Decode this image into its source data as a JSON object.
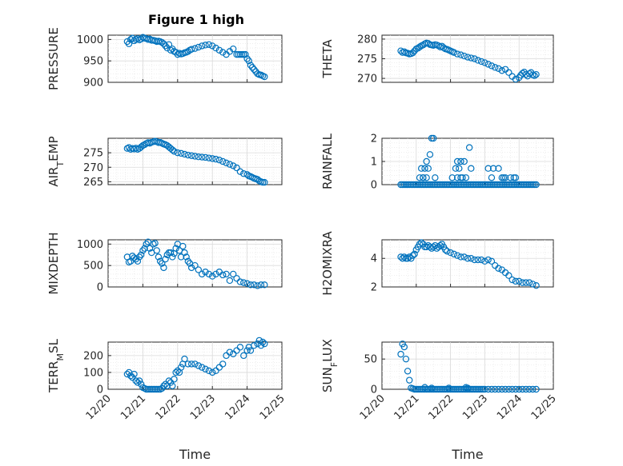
{
  "chart_data": [
    {
      "type": "scatter",
      "title": "Figure 1 high",
      "ylabel": "PRESSURE",
      "xlabel": "",
      "xlim": [
        20,
        25
      ],
      "ylim": [
        900,
        1010
      ],
      "yticks": [
        "900",
        "950",
        "1000"
      ],
      "ytick_values": [
        900,
        950,
        1000
      ],
      "x": [
        20.55,
        20.6,
        20.65,
        20.7,
        20.75,
        20.8,
        20.85,
        20.9,
        20.95,
        21.0,
        21.05,
        21.1,
        21.15,
        21.2,
        21.25,
        21.3,
        21.35,
        21.4,
        21.45,
        21.5,
        21.55,
        21.6,
        21.65,
        21.7,
        21.75,
        21.8,
        21.85,
        21.9,
        21.95,
        22.0,
        22.05,
        22.1,
        22.15,
        22.2,
        22.25,
        22.3,
        22.35,
        22.4,
        22.5,
        22.6,
        22.7,
        22.8,
        22.9,
        23.0,
        23.1,
        23.2,
        23.3,
        23.4,
        23.5,
        23.6,
        23.7,
        23.75,
        23.8,
        23.85,
        23.9,
        23.95,
        24.0,
        24.05,
        24.1,
        24.15,
        24.2,
        24.25,
        24.3,
        24.35,
        24.4,
        24.45,
        24.5
      ],
      "y": [
        995,
        990,
        1000,
        1003,
        997,
        1000,
        1002,
        999,
        1001,
        1005,
        1003,
        1002,
        1000,
        1001,
        998,
        998,
        997,
        995,
        996,
        995,
        993,
        990,
        985,
        980,
        988,
        975,
        978,
        972,
        970,
        965,
        968,
        966,
        967,
        969,
        970,
        972,
        975,
        977,
        979,
        982,
        985,
        987,
        988,
        985,
        980,
        975,
        970,
        965,
        972,
        978,
        965,
        965,
        965,
        965,
        965,
        965,
        955,
        950,
        940,
        935,
        930,
        925,
        920,
        918,
        917,
        915,
        913
      ]
    },
    {
      "type": "scatter",
      "ylabel": "THETA",
      "xlabel": "",
      "xlim": [
        20,
        25
      ],
      "ylim": [
        269,
        281
      ],
      "yticks": [
        "270",
        "275",
        "280"
      ],
      "ytick_values": [
        270,
        275,
        280
      ],
      "x": [
        20.55,
        20.6,
        20.65,
        20.7,
        20.75,
        20.8,
        20.85,
        20.9,
        20.95,
        21.0,
        21.05,
        21.1,
        21.15,
        21.2,
        21.25,
        21.3,
        21.35,
        21.4,
        21.45,
        21.5,
        21.55,
        21.6,
        21.65,
        21.7,
        21.75,
        21.8,
        21.85,
        21.9,
        21.95,
        22.0,
        22.05,
        22.1,
        22.2,
        22.3,
        22.4,
        22.5,
        22.6,
        22.7,
        22.8,
        22.9,
        23.0,
        23.1,
        23.2,
        23.3,
        23.4,
        23.5,
        23.6,
        23.7,
        23.8,
        23.9,
        24.0,
        24.05,
        24.1,
        24.15,
        24.2,
        24.25,
        24.3,
        24.35,
        24.4,
        24.45,
        24.5
      ],
      "y": [
        277,
        276.6,
        276.8,
        276.5,
        276.4,
        276.2,
        276.3,
        276.5,
        277,
        277.5,
        277.7,
        278,
        278.3,
        278.5,
        278.8,
        279,
        278.9,
        278.6,
        278.5,
        278.4,
        278.6,
        278.5,
        278.3,
        278,
        278.2,
        277.8,
        277.5,
        277.4,
        277.2,
        277,
        276.8,
        276.6,
        276.2,
        276,
        275.7,
        275.4,
        275.2,
        275,
        274.6,
        274.3,
        274,
        273.6,
        273.2,
        272.8,
        272.5,
        272,
        272.3,
        271.5,
        270.5,
        269.8,
        270.2,
        270.8,
        271.3,
        271.6,
        271,
        270.6,
        271.2,
        271.5,
        270.9,
        270.7,
        271
      ]
    },
    {
      "type": "scatter",
      "ylabel": "AIR_TEMP",
      "xlabel": "",
      "xlim": [
        20,
        25
      ],
      "ylim": [
        264,
        280
      ],
      "yticks": [
        "265",
        "270",
        "275"
      ],
      "ytick_values": [
        265,
        270,
        275
      ],
      "x": [
        20.55,
        20.6,
        20.65,
        20.7,
        20.75,
        20.8,
        20.85,
        20.9,
        20.95,
        21.0,
        21.05,
        21.1,
        21.15,
        21.2,
        21.25,
        21.3,
        21.35,
        21.4,
        21.45,
        21.5,
        21.55,
        21.6,
        21.65,
        21.7,
        21.75,
        21.8,
        21.85,
        21.9,
        22.0,
        22.1,
        22.2,
        22.3,
        22.4,
        22.5,
        22.6,
        22.7,
        22.8,
        22.9,
        23.0,
        23.1,
        23.2,
        23.3,
        23.4,
        23.5,
        23.6,
        23.7,
        23.8,
        23.9,
        24.0,
        24.05,
        24.1,
        24.15,
        24.2,
        24.25,
        24.3,
        24.35,
        24.4,
        24.45,
        24.5
      ],
      "y": [
        276.5,
        276.8,
        276.2,
        276.5,
        276.3,
        276.6,
        276.2,
        276.5,
        277,
        277.5,
        277.8,
        278.2,
        278.5,
        278.3,
        278.6,
        278.8,
        279,
        278.8,
        278.5,
        278.6,
        278.3,
        278,
        277.8,
        277.5,
        277,
        276.5,
        276,
        275.5,
        275,
        274.8,
        274.5,
        274.2,
        274,
        273.8,
        273.6,
        273.5,
        273.4,
        273.2,
        273,
        272.8,
        272.5,
        272,
        271.5,
        271,
        270.5,
        269.8,
        268.5,
        267.8,
        267.5,
        267,
        266.8,
        266.5,
        266.2,
        266,
        265.8,
        265.3,
        265,
        264.8,
        264.8
      ]
    },
    {
      "type": "scatter",
      "ylabel": "RAINFALL",
      "xlabel": "",
      "xlim": [
        20,
        25
      ],
      "ylim": [
        0,
        2
      ],
      "yticks": [
        "0",
        "1",
        "2"
      ],
      "ytick_values": [
        0,
        1,
        2
      ],
      "x": [
        20.55,
        20.6,
        20.65,
        20.7,
        20.75,
        20.8,
        20.85,
        20.9,
        20.95,
        21.0,
        21.05,
        21.1,
        21.15,
        21.2,
        21.25,
        21.3,
        21.35,
        21.4,
        21.45,
        21.5,
        21.55,
        21.6,
        21.65,
        21.7,
        21.75,
        21.8,
        21.85,
        21.9,
        21.95,
        22.0,
        22.05,
        22.1,
        22.15,
        22.2,
        22.25,
        22.3,
        22.35,
        22.4,
        22.45,
        22.5,
        22.55,
        22.6,
        22.65,
        22.7,
        22.75,
        22.8,
        22.85,
        22.9,
        22.95,
        23.0,
        23.05,
        23.1,
        23.15,
        23.2,
        23.25,
        23.3,
        23.35,
        23.4,
        23.45,
        23.5,
        23.55,
        23.6,
        23.65,
        23.7,
        23.75,
        23.8,
        23.85,
        23.9,
        23.95,
        24.0,
        24.05,
        24.1,
        24.15,
        24.2,
        24.25,
        24.3,
        24.35,
        24.4,
        24.45,
        24.5,
        21.1,
        21.15,
        21.2,
        21.25,
        21.3,
        21.35,
        21.45,
        21.5,
        21.55,
        22.05,
        22.15,
        22.2,
        22.25,
        22.3,
        22.4,
        22.45,
        22.55,
        22.6,
        23.1,
        23.2,
        23.55,
        23.9,
        22.3,
        22.35,
        22.2,
        21.2,
        21.4,
        21.3,
        23.25,
        23.4,
        23.5,
        23.6,
        23.75,
        23.85
      ],
      "y": [
        0,
        0,
        0,
        0,
        0,
        0,
        0,
        0,
        0,
        0,
        0,
        0,
        0,
        0,
        0,
        0,
        0,
        0,
        0,
        0,
        0,
        0,
        0,
        0,
        0,
        0,
        0,
        0,
        0,
        0,
        0,
        0,
        0,
        0,
        0,
        0,
        0,
        0,
        0,
        0,
        0,
        0,
        0,
        0,
        0,
        0,
        0,
        0,
        0,
        0,
        0,
        0,
        0,
        0,
        0,
        0,
        0,
        0,
        0,
        0,
        0,
        0,
        0,
        0,
        0,
        0,
        0,
        0,
        0,
        0,
        0,
        0,
        0,
        0,
        0,
        0,
        0,
        0,
        0,
        0,
        0.3,
        0.7,
        0.3,
        0.7,
        1,
        0.7,
        2,
        2,
        0.3,
        0.3,
        0.7,
        1,
        0.7,
        1,
        1,
        0.3,
        1.6,
        0.7,
        0.7,
        0.3,
        0.3,
        0.3,
        0.3,
        0.3,
        0.3,
        0.3,
        1.3,
        0.3,
        0.7,
        0.7,
        0.3,
        0.3,
        0.3,
        0.3
      ]
    },
    {
      "type": "scatter",
      "ylabel": "MIXDEPTH",
      "xlabel": "",
      "xlim": [
        20,
        25
      ],
      "ylim": [
        0,
        1100
      ],
      "yticks": [
        "0",
        "500",
        "1000"
      ],
      "ytick_values": [
        0,
        500,
        1000
      ],
      "x": [
        20.55,
        20.6,
        20.65,
        20.7,
        20.75,
        20.8,
        20.85,
        20.9,
        20.95,
        21.0,
        21.05,
        21.1,
        21.15,
        21.2,
        21.25,
        21.3,
        21.35,
        21.4,
        21.45,
        21.5,
        21.55,
        21.6,
        21.65,
        21.7,
        21.75,
        21.8,
        21.85,
        21.9,
        21.95,
        22.0,
        22.05,
        22.1,
        22.15,
        22.2,
        22.25,
        22.3,
        22.35,
        22.4,
        22.5,
        22.6,
        22.7,
        22.8,
        22.9,
        23.0,
        23.1,
        23.2,
        23.3,
        23.4,
        23.5,
        23.6,
        23.7,
        23.8,
        23.9,
        24.0,
        24.1,
        24.2,
        24.3,
        24.4,
        24.5
      ],
      "y": [
        700,
        580,
        600,
        720,
        680,
        650,
        600,
        700,
        750,
        850,
        900,
        1000,
        1050,
        900,
        800,
        1000,
        1020,
        850,
        700,
        600,
        550,
        450,
        650,
        750,
        800,
        800,
        700,
        780,
        900,
        1000,
        850,
        700,
        950,
        800,
        700,
        600,
        550,
        450,
        500,
        400,
        300,
        350,
        300,
        250,
        300,
        350,
        280,
        300,
        150,
        300,
        200,
        120,
        100,
        80,
        50,
        50,
        30,
        50,
        50
      ]
    },
    {
      "type": "scatter",
      "ylabel": "H2OMIXRA",
      "xlabel": "",
      "xlim": [
        20,
        25
      ],
      "ylim": [
        2,
        5.3
      ],
      "yticks": [
        "2",
        "4"
      ],
      "ytick_values": [
        2,
        4
      ],
      "x": [
        20.55,
        20.6,
        20.65,
        20.7,
        20.75,
        20.8,
        20.85,
        20.9,
        20.95,
        21.0,
        21.05,
        21.1,
        21.15,
        21.2,
        21.25,
        21.3,
        21.35,
        21.4,
        21.45,
        21.5,
        21.55,
        21.6,
        21.65,
        21.7,
        21.75,
        21.8,
        21.85,
        21.9,
        22.0,
        22.1,
        22.2,
        22.3,
        22.4,
        22.5,
        22.6,
        22.7,
        22.8,
        22.9,
        23.0,
        23.1,
        23.2,
        23.3,
        23.4,
        23.5,
        23.6,
        23.7,
        23.8,
        23.9,
        24.0,
        24.1,
        24.2,
        24.3,
        24.4,
        24.5
      ],
      "y": [
        4.1,
        4.0,
        4.1,
        4.0,
        4.0,
        4.1,
        4.0,
        4.2,
        4.3,
        4.6,
        4.8,
        5.0,
        5.1,
        5.0,
        4.8,
        4.8,
        4.9,
        4.8,
        4.7,
        4.8,
        4.9,
        4.7,
        4.8,
        4.9,
        5.0,
        4.8,
        4.6,
        4.5,
        4.4,
        4.3,
        4.2,
        4.1,
        4.1,
        4.0,
        4.0,
        3.9,
        3.9,
        3.9,
        3.8,
        3.9,
        3.8,
        3.5,
        3.3,
        3.2,
        3.0,
        2.8,
        2.5,
        2.4,
        2.4,
        2.3,
        2.3,
        2.3,
        2.2,
        2.1
      ]
    },
    {
      "type": "scatter",
      "ylabel": "TERR_MSL",
      "xlabel": "Time",
      "xlim": [
        20,
        25
      ],
      "ylim": [
        0,
        280
      ],
      "yticks": [
        "0",
        "100",
        "200"
      ],
      "ytick_values": [
        0,
        100,
        200
      ],
      "xticks": [
        "12/20",
        "12/21",
        "12/22",
        "12/23",
        "12/24",
        "12/25"
      ],
      "xtick_values": [
        20,
        21,
        22,
        23,
        24,
        25
      ],
      "x": [
        20.55,
        20.6,
        20.65,
        20.7,
        20.75,
        20.8,
        20.85,
        20.9,
        20.95,
        21.0,
        21.05,
        21.1,
        21.15,
        21.2,
        21.25,
        21.3,
        21.35,
        21.4,
        21.45,
        21.5,
        21.55,
        21.6,
        21.65,
        21.7,
        21.75,
        21.8,
        21.85,
        21.9,
        21.95,
        22.0,
        22.05,
        22.1,
        22.15,
        22.2,
        22.3,
        22.4,
        22.5,
        22.6,
        22.7,
        22.8,
        22.9,
        23.0,
        23.1,
        23.2,
        23.3,
        23.4,
        23.5,
        23.6,
        23.7,
        23.8,
        23.9,
        24.0,
        24.05,
        24.1,
        24.2,
        24.3,
        24.35,
        24.4,
        24.45,
        24.5
      ],
      "y": [
        90,
        100,
        80,
        70,
        90,
        50,
        40,
        50,
        30,
        10,
        5,
        0,
        0,
        0,
        0,
        0,
        0,
        0,
        0,
        0,
        5,
        20,
        30,
        20,
        50,
        40,
        20,
        60,
        100,
        110,
        100,
        130,
        150,
        180,
        150,
        150,
        150,
        140,
        130,
        120,
        110,
        100,
        110,
        130,
        150,
        200,
        220,
        210,
        230,
        250,
        200,
        230,
        250,
        230,
        260,
        270,
        290,
        260,
        280,
        270
      ]
    },
    {
      "type": "scatter",
      "ylabel": "SUN_FLUX",
      "xlabel": "Time",
      "xlim": [
        20,
        25
      ],
      "ylim": [
        0,
        78
      ],
      "yticks": [
        "0",
        "50"
      ],
      "ytick_values": [
        0,
        50
      ],
      "xticks": [
        "12/20",
        "12/21",
        "12/22",
        "12/23",
        "12/24",
        "12/25"
      ],
      "xtick_values": [
        20,
        21,
        22,
        23,
        24,
        25
      ],
      "x": [
        20.55,
        20.6,
        20.65,
        20.7,
        20.75,
        20.8,
        20.85,
        20.9,
        20.95,
        21.0,
        21.05,
        21.1,
        21.15,
        21.2,
        21.25,
        21.3,
        21.35,
        21.4,
        21.45,
        21.5,
        21.55,
        21.6,
        21.65,
        21.7,
        21.75,
        21.8,
        21.85,
        21.9,
        21.95,
        22.0,
        22.05,
        22.1,
        22.15,
        22.2,
        22.25,
        22.3,
        22.35,
        22.4,
        22.45,
        22.5,
        22.55,
        22.6,
        22.65,
        22.7,
        22.75,
        22.8,
        22.85,
        22.9,
        22.95,
        23.0,
        23.1,
        23.2,
        23.3,
        23.4,
        23.5,
        23.6,
        23.7,
        23.8,
        23.9,
        24.0,
        24.1,
        24.2,
        24.3,
        24.4,
        24.5,
        21.25,
        21.45,
        21.95,
        22.45,
        22.5
      ],
      "y": [
        58,
        75,
        70,
        50,
        30,
        15,
        2,
        1,
        0,
        0,
        0,
        0,
        0,
        0,
        0,
        0,
        0,
        0,
        0,
        0,
        0,
        0,
        0,
        0,
        0,
        0,
        0,
        0,
        0,
        0,
        0,
        0,
        0,
        0,
        0,
        0,
        0,
        0,
        0,
        0,
        0,
        0,
        0,
        0,
        0,
        0,
        0,
        0,
        0,
        0,
        0,
        0,
        0,
        0,
        0,
        0,
        0,
        0,
        0,
        0,
        0,
        0,
        0,
        0,
        0,
        3,
        2,
        2,
        3,
        2
      ]
    }
  ]
}
